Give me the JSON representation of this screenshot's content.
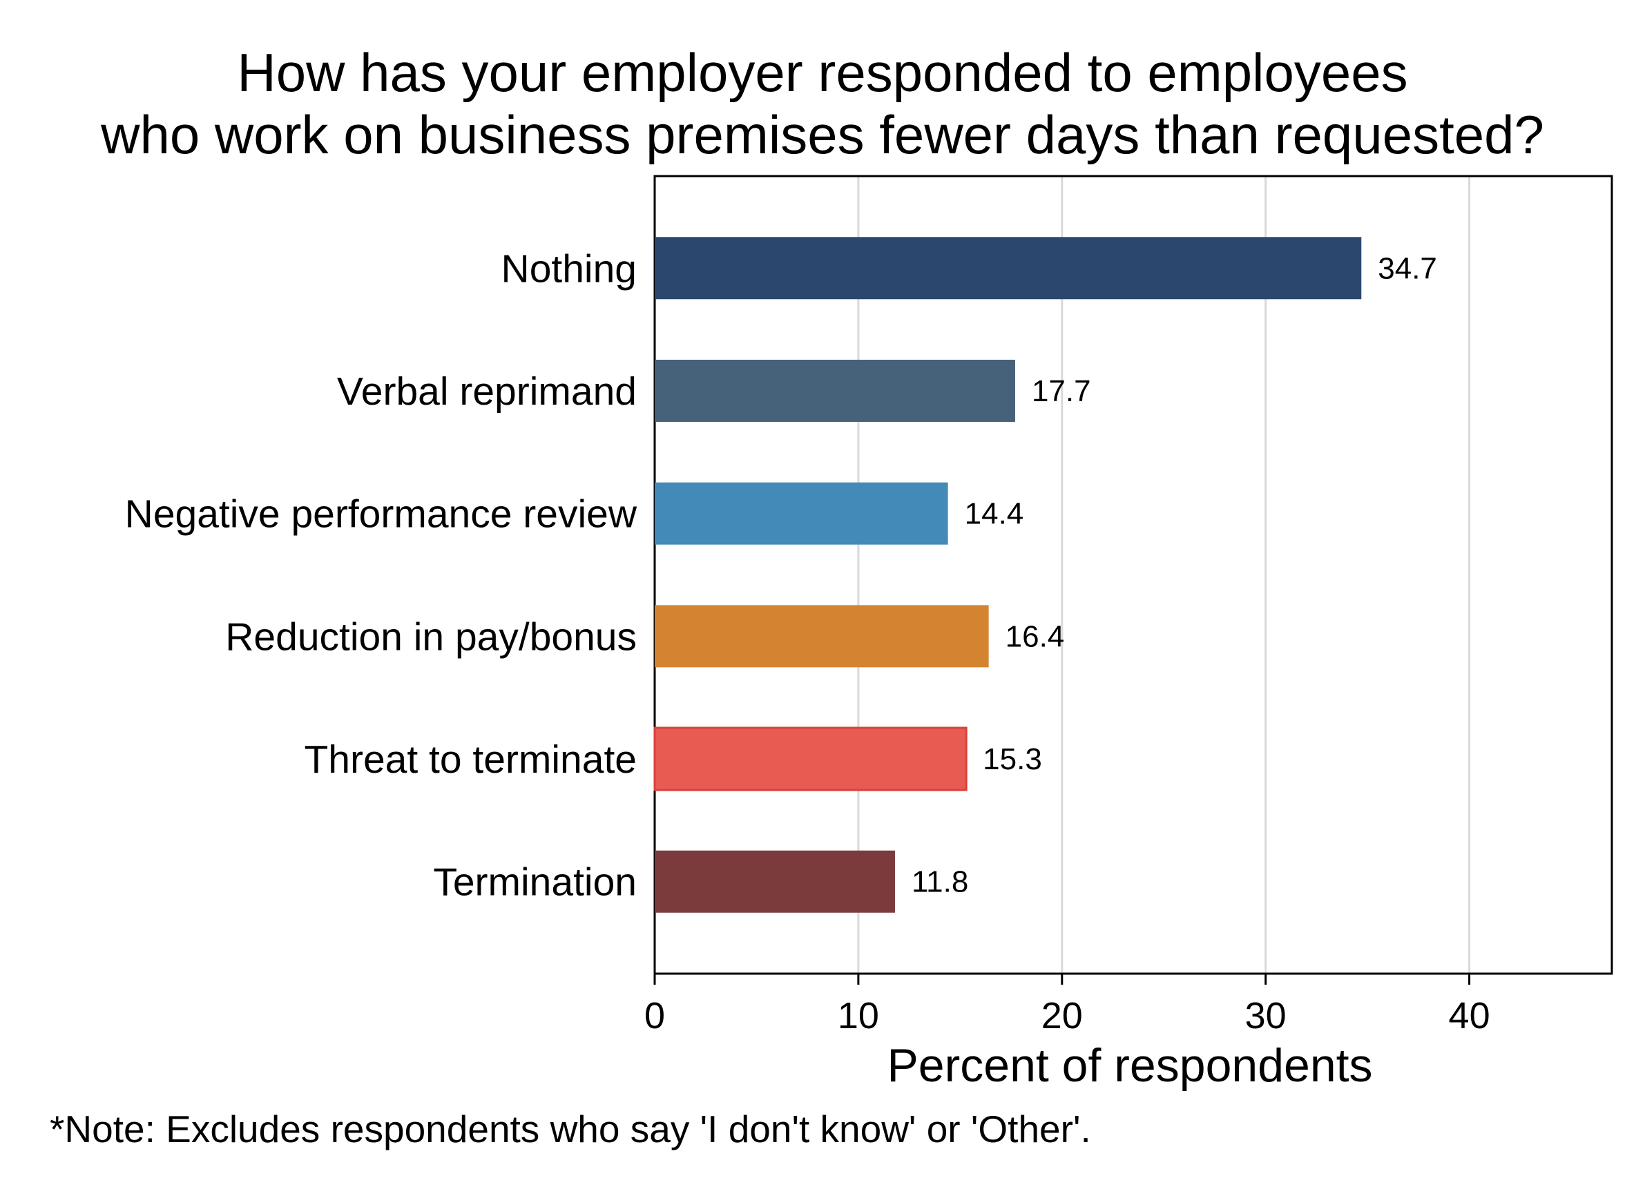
{
  "chart_data": {
    "type": "bar",
    "orientation": "horizontal",
    "title": [
      "How has your employer responded to employees",
      "who work on business premises fewer days than requested?"
    ],
    "xlabel": "Percent of respondents",
    "ylabel": "",
    "categories": [
      "Nothing",
      "Verbal reprimand",
      "Negative performance review",
      "Reduction in pay/bonus",
      "Threat to terminate",
      "Termination"
    ],
    "values": [
      34.7,
      17.7,
      14.4,
      16.4,
      15.3,
      11.8
    ],
    "value_labels": [
      "34.7",
      "17.7",
      "14.4",
      "16.4",
      "15.3",
      "11.8"
    ],
    "colors": [
      "#2b476d",
      "#46627a",
      "#438ab8",
      "#d48431",
      "#e85b53",
      "#7b3b3c"
    ],
    "xlim": [
      0,
      47
    ],
    "xticks": [
      0,
      10,
      20,
      30,
      40
    ],
    "grid": true,
    "legend": "none",
    "note": "*Note: Excludes respondents who say 'I don't know' or 'Other'."
  }
}
